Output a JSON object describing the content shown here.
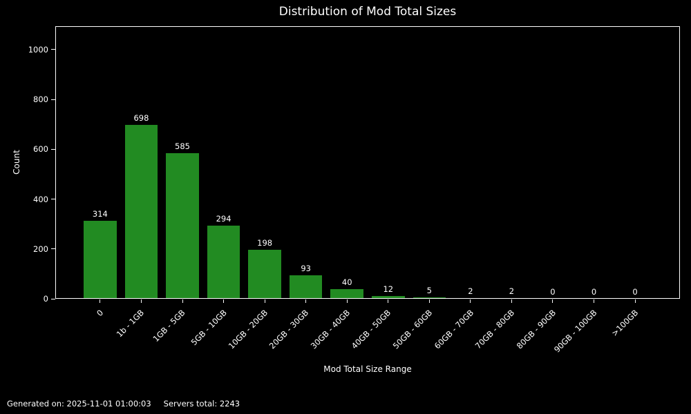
{
  "title": "Distribution of Mod Total Sizes",
  "footer": {
    "generated": "Generated on: 2025-11-01 01:00:03",
    "servers_total": "Servers total: 2243"
  },
  "chart_data": {
    "type": "bar",
    "title": "Distribution of Mod Total Sizes",
    "xlabel": "Mod Total Size Range",
    "ylabel": "Count",
    "categories": [
      "0",
      "1b - 1GB",
      "1GB - 5GB",
      "5GB - 10GB",
      "10GB - 20GB",
      "20GB - 30GB",
      "30GB - 40GB",
      "40GB - 50GB",
      "50GB - 60GB",
      "60GB - 70GB",
      "70GB - 80GB",
      "80GB - 90GB",
      "90GB - 100GB",
      ">100GB"
    ],
    "values": [
      314,
      698,
      585,
      294,
      198,
      93,
      40,
      12,
      5,
      2,
      2,
      0,
      0,
      0
    ],
    "yticks": [
      0,
      200,
      400,
      600,
      800,
      1000
    ],
    "ylim": [
      0,
      1094
    ],
    "bar_labels": true,
    "tick_rotation": 45,
    "grid": false,
    "legend": null,
    "colors": {
      "bar": "#228b22",
      "background": "#000000",
      "text": "#ffffff",
      "axis": "#ffffff"
    }
  }
}
